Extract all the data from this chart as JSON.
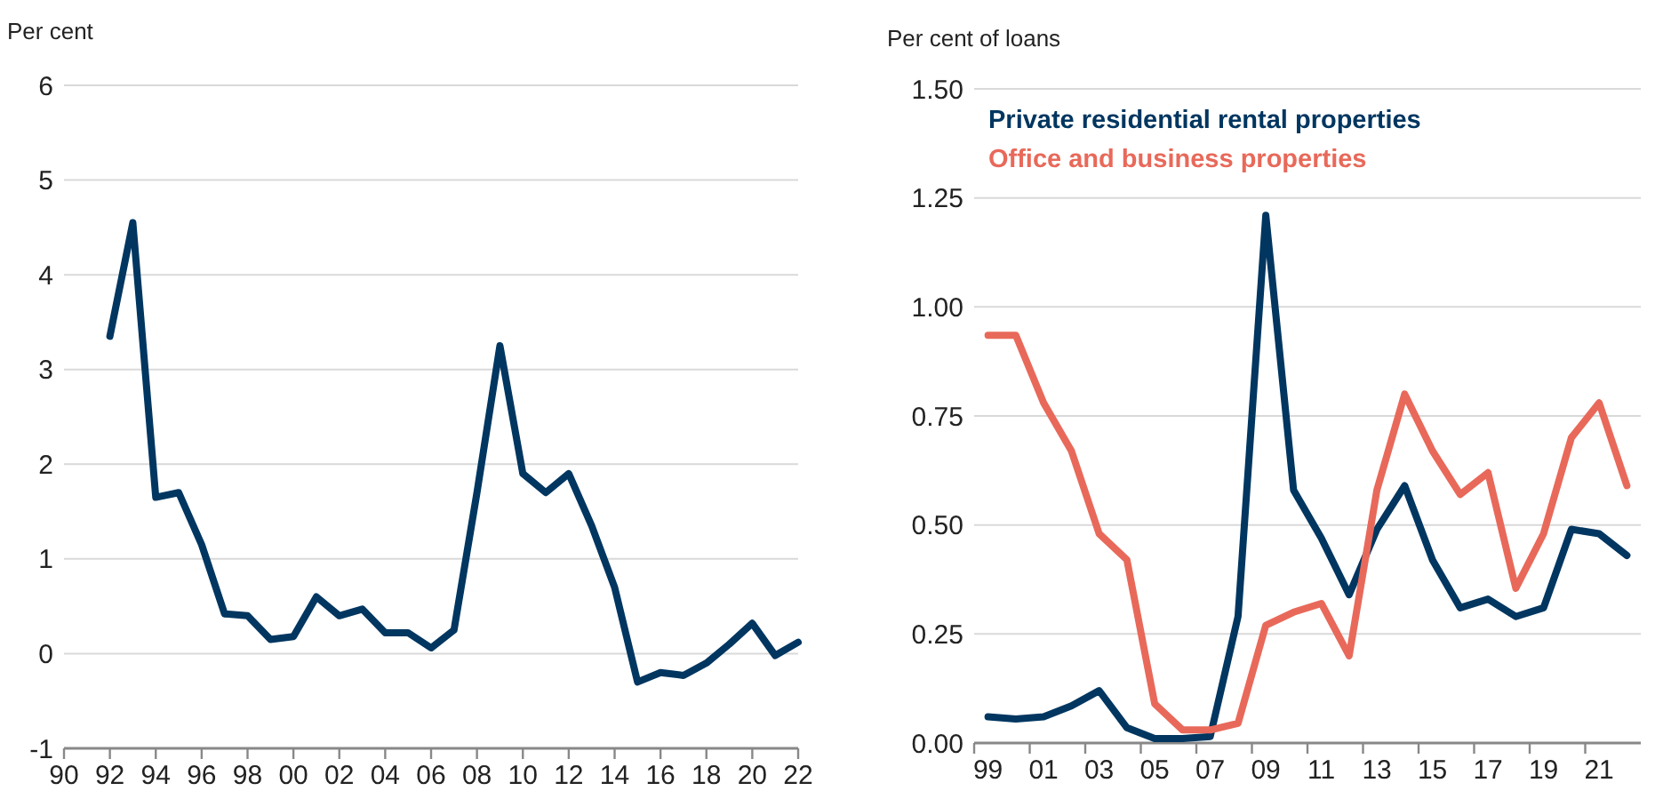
{
  "chart_data": [
    {
      "type": "line",
      "ylabel": "Per cent",
      "x": [
        1992,
        1993,
        1994,
        1995,
        1996,
        1997,
        1998,
        1999,
        2000,
        2001,
        2002,
        2003,
        2004,
        2005,
        2006,
        2007,
        2008,
        2009,
        2010,
        2011,
        2012,
        2013,
        2014,
        2015,
        2016,
        2017,
        2018,
        2019,
        2020,
        2021,
        2022
      ],
      "series": [
        {
          "color": "#003660",
          "values": [
            3.35,
            4.55,
            1.65,
            1.7,
            1.15,
            0.42,
            0.4,
            0.15,
            0.18,
            0.6,
            0.4,
            0.47,
            0.22,
            0.22,
            0.06,
            0.25,
            1.7,
            3.25,
            1.9,
            1.7,
            1.9,
            1.35,
            0.7,
            -0.3,
            -0.2,
            -0.23,
            -0.1,
            0.1,
            0.32,
            -0.02,
            0.12
          ]
        }
      ],
      "xlim": [
        1990,
        2022
      ],
      "xticks": [
        {
          "value": 1990,
          "label": "90"
        },
        {
          "value": 1992,
          "label": "92"
        },
        {
          "value": 1994,
          "label": "94"
        },
        {
          "value": 1996,
          "label": "96"
        },
        {
          "value": 1998,
          "label": "98"
        },
        {
          "value": 2000,
          "label": "00"
        },
        {
          "value": 2002,
          "label": "02"
        },
        {
          "value": 2004,
          "label": "04"
        },
        {
          "value": 2006,
          "label": "06"
        },
        {
          "value": 2008,
          "label": "08"
        },
        {
          "value": 2010,
          "label": "10"
        },
        {
          "value": 2012,
          "label": "12"
        },
        {
          "value": 2014,
          "label": "14"
        },
        {
          "value": 2016,
          "label": "16"
        },
        {
          "value": 2018,
          "label": "18"
        },
        {
          "value": 2020,
          "label": "20"
        },
        {
          "value": 2022,
          "label": "22"
        }
      ],
      "ylim": [
        -1,
        6
      ],
      "yticks": [
        -1,
        0,
        1,
        2,
        3,
        4,
        5,
        6
      ],
      "grid": "y",
      "legend": false
    },
    {
      "type": "line",
      "ylabel": "Per cent of loans",
      "categories": [
        "99",
        null,
        "01",
        null,
        "03",
        null,
        "05",
        null,
        "07",
        null,
        "09",
        null,
        "11",
        null,
        "13",
        null,
        "15",
        null,
        "17",
        null,
        "19",
        null,
        "21",
        null
      ],
      "series": [
        {
          "name": "Private residential rental properties",
          "color": "#003660",
          "values": [
            0.06,
            0.055,
            0.06,
            0.085,
            0.12,
            0.035,
            0.01,
            0.01,
            0.015,
            0.29,
            1.21,
            0.58,
            0.47,
            0.34,
            0.49,
            0.59,
            0.42,
            0.31,
            0.33,
            0.29,
            0.31,
            0.49,
            0.48,
            0.43
          ]
        },
        {
          "name": "Office and business properties",
          "color": "#e8695a",
          "values": [
            0.935,
            0.935,
            0.78,
            0.67,
            0.48,
            0.42,
            0.09,
            0.03,
            0.03,
            0.045,
            0.27,
            0.3,
            0.32,
            0.2,
            0.58,
            0.8,
            0.67,
            0.57,
            0.62,
            0.355,
            0.48,
            0.7,
            0.78,
            0.59
          ]
        }
      ],
      "ylim": [
        0,
        1.5
      ],
      "yticks": [
        {
          "value": 0,
          "label": "0.00"
        },
        {
          "value": 0.25,
          "label": "0.25"
        },
        {
          "value": 0.5,
          "label": "0.50"
        },
        {
          "value": 0.75,
          "label": "0.75"
        },
        {
          "value": 1,
          "label": "1.00"
        },
        {
          "value": 1.25,
          "label": "1.25"
        },
        {
          "value": 1.5,
          "label": "1.50"
        }
      ],
      "grid": "y",
      "legend": "top left"
    }
  ]
}
